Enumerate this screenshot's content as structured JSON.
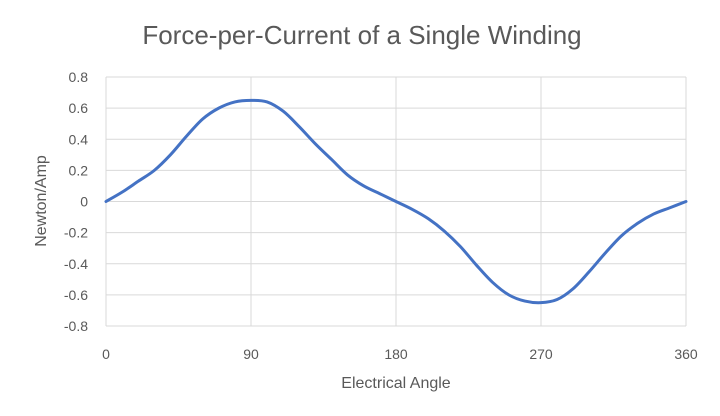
{
  "chart_data": {
    "type": "line",
    "title": "Force-per-Current of a Single Winding",
    "xlabel": "Electrical Angle",
    "ylabel": "Newton/Amp",
    "xlim": [
      0,
      360
    ],
    "ylim": [
      -0.8,
      0.8
    ],
    "x_ticks": [
      0,
      90,
      180,
      270,
      360
    ],
    "y_ticks": [
      0.8,
      0.6,
      0.4,
      0.2,
      0,
      -0.2,
      -0.4,
      -0.6,
      -0.8
    ],
    "x_tick_labels": [
      "0",
      "90",
      "180",
      "270",
      "360"
    ],
    "y_tick_labels": [
      "0.8",
      "0.6",
      "0.4",
      "0.2",
      "0",
      "-0.2",
      "-0.4",
      "-0.6",
      "-0.8"
    ],
    "grid": true,
    "legend": "none",
    "series_color": "#4472C4",
    "series": [
      {
        "x": [
          0,
          10,
          20,
          30,
          40,
          50,
          60,
          70,
          80,
          90,
          100,
          110,
          120,
          130,
          140,
          150,
          160,
          170,
          180,
          190,
          200,
          210,
          220,
          230,
          240,
          250,
          260,
          270,
          280,
          290,
          300,
          310,
          320,
          330,
          340,
          350,
          360
        ],
        "values": [
          0,
          0.06,
          0.13,
          0.2,
          0.3,
          0.42,
          0.53,
          0.6,
          0.64,
          0.65,
          0.64,
          0.58,
          0.48,
          0.37,
          0.27,
          0.17,
          0.1,
          0.05,
          0,
          -0.05,
          -0.11,
          -0.19,
          -0.29,
          -0.41,
          -0.52,
          -0.6,
          -0.64,
          -0.65,
          -0.63,
          -0.56,
          -0.45,
          -0.33,
          -0.22,
          -0.14,
          -0.08,
          -0.04,
          0
        ]
      }
    ]
  }
}
